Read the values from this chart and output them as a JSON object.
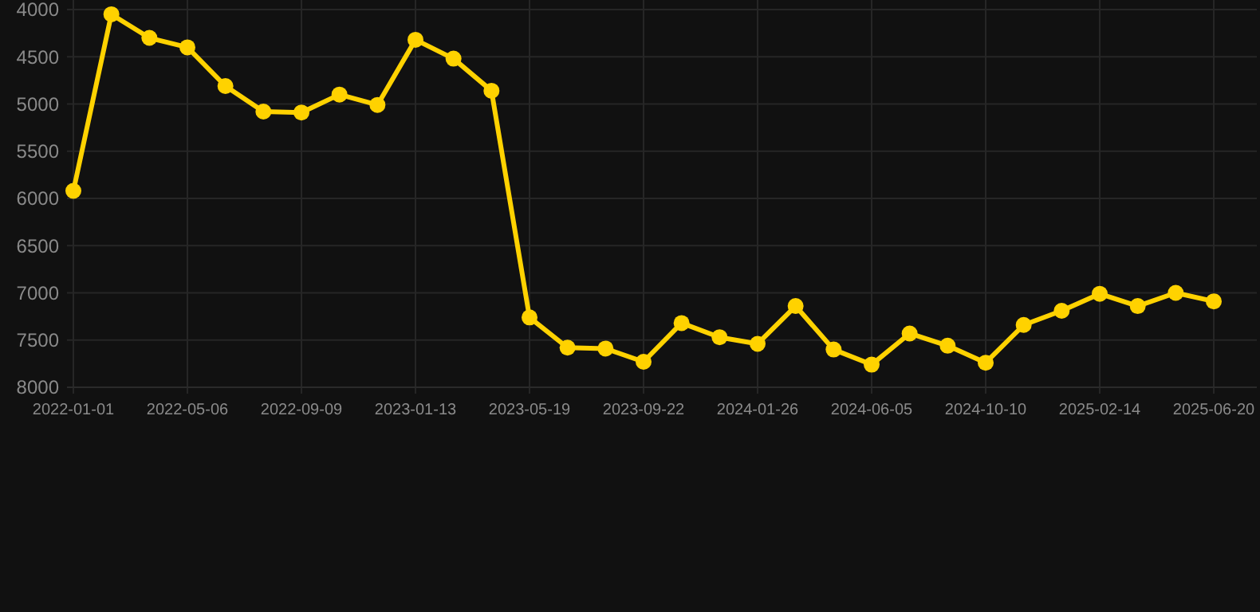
{
  "chart_data": {
    "type": "line",
    "categories": [
      "2022-01-01",
      null,
      null,
      "2022-05-06",
      null,
      null,
      "2022-09-09",
      null,
      null,
      "2023-01-13",
      null,
      null,
      "2023-05-19",
      null,
      null,
      "2023-09-22",
      null,
      null,
      "2024-01-26",
      null,
      null,
      "2024-06-05",
      null,
      null,
      "2024-10-10",
      null,
      null,
      "2025-02-14",
      null,
      null,
      "2025-06-20"
    ],
    "series": [
      {
        "color": "#ffd200",
        "values": [
          5920,
          4050,
          4300,
          4400,
          4810,
          5080,
          5090,
          4900,
          5010,
          4320,
          4520,
          4860,
          7260,
          7580,
          7590,
          7730,
          7320,
          7470,
          7540,
          7140,
          7600,
          7760,
          7430,
          7560,
          7740,
          7340,
          7190,
          7010,
          7140,
          7000,
          7090
        ]
      }
    ],
    "ylim": [
      8000,
      4000
    ],
    "yticks": [
      4000,
      4500,
      5000,
      5500,
      6000,
      6500,
      7000,
      7500,
      8000
    ],
    "grid": true,
    "marker": "circle",
    "line_style": "solid"
  }
}
